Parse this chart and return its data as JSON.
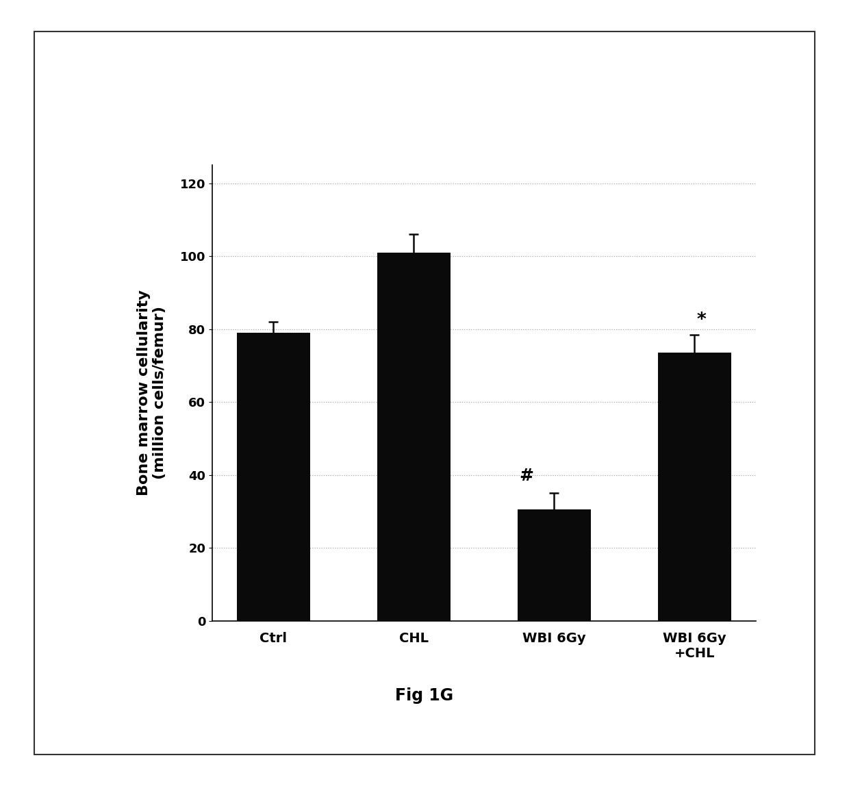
{
  "categories": [
    "Ctrl",
    "CHL",
    "WBI 6Gy",
    "WBI 6Gy\n+CHL"
  ],
  "values": [
    79,
    101,
    30.5,
    73.5
  ],
  "errors": [
    3,
    5,
    4.5,
    5
  ],
  "bar_color": "#0a0a0a",
  "bar_width": 0.52,
  "ylim": [
    0,
    125
  ],
  "yticks": [
    0,
    20,
    40,
    60,
    80,
    100,
    120
  ],
  "ylabel_line1": "Bone marrow cellularity",
  "ylabel_line2": "(million cells/femur)",
  "figcaption": "Fig 1G",
  "grid_color": "#aaaaaa",
  "grid_style": ":",
  "background_color": "#ffffff",
  "border_color": "#555555",
  "ecolor": "#0a0a0a",
  "capsize": 5,
  "annotation_hash_bar": 2,
  "annotation_star_bar": 3
}
